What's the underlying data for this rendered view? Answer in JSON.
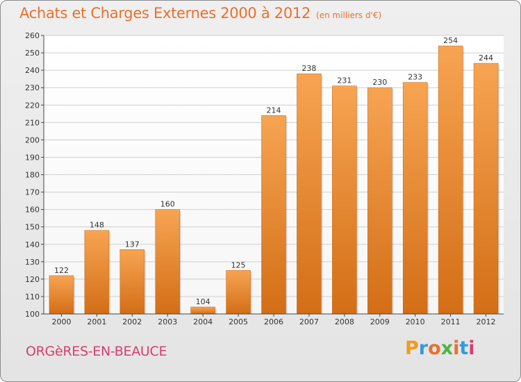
{
  "header": {
    "title": "Achats et Charges Externes 2000 à 2012",
    "unit": "(en milliers d'€)"
  },
  "footer": {
    "commune": "ORGèRES-EN-BEAUCE",
    "logo_letters": [
      {
        "char": "P",
        "color": "#f29a1e"
      },
      {
        "char": "r",
        "color": "#2f9be0"
      },
      {
        "char": "o",
        "color": "#e8702c"
      },
      {
        "char": "x",
        "color": "#4bb543"
      },
      {
        "char": "i",
        "color": "#e8702c"
      },
      {
        "char": "t",
        "color": "#2f9be0"
      },
      {
        "char": "i",
        "color": "#d43f6a"
      }
    ]
  },
  "colors": {
    "bar_light": "#f7a452",
    "bar_dark": "#d36e16",
    "title": "#e8702c",
    "commune": "#d43f6a"
  },
  "chart_data": {
    "type": "bar",
    "title": "Achats et Charges Externes 2000 à 2012",
    "subtitle": "(en milliers d'€)",
    "xlabel": "",
    "ylabel": "",
    "categories": [
      "2000",
      "2001",
      "2002",
      "2003",
      "2004",
      "2005",
      "2006",
      "2007",
      "2008",
      "2009",
      "2010",
      "2011",
      "2012"
    ],
    "values": [
      122,
      148,
      137,
      160,
      104,
      125,
      214,
      238,
      231,
      230,
      233,
      254,
      244
    ],
    "ylim": [
      100,
      260
    ],
    "yticks": [
      100,
      110,
      120,
      130,
      140,
      150,
      160,
      170,
      180,
      190,
      200,
      210,
      220,
      230,
      240,
      250,
      260
    ],
    "grid": true,
    "legend": "none"
  }
}
